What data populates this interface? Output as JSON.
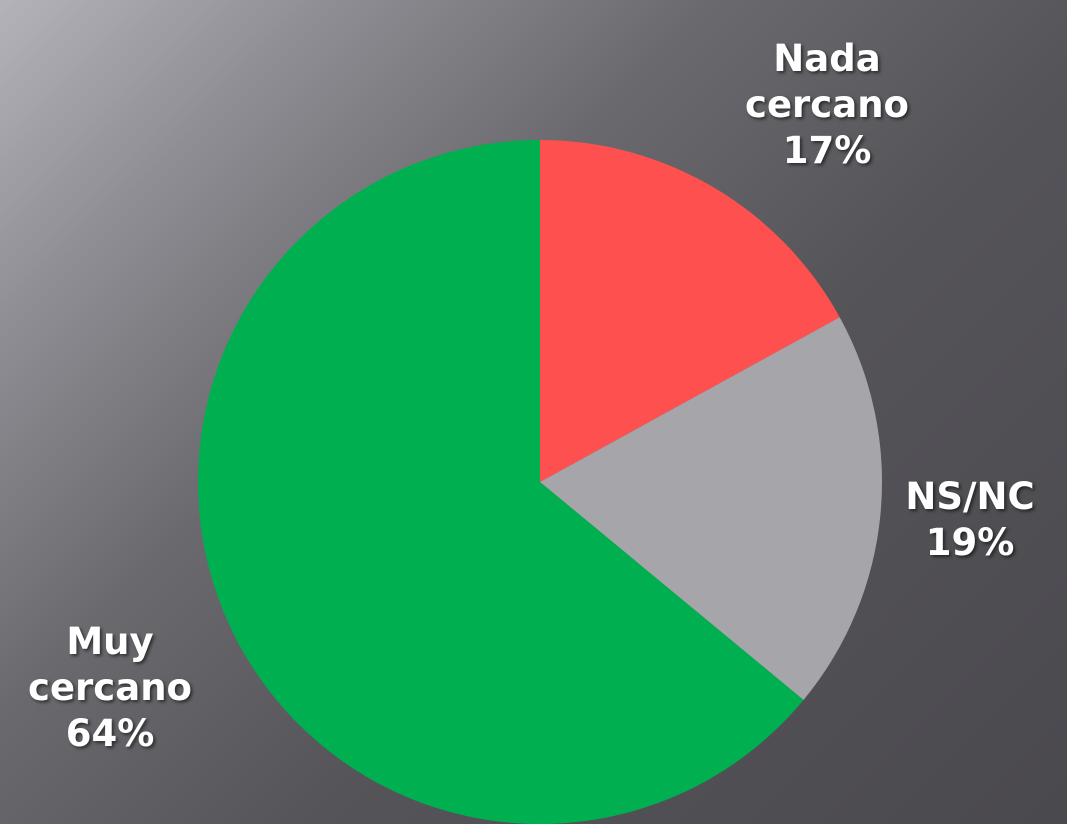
{
  "chart_data": {
    "type": "pie",
    "categories": [
      "Nada cercano",
      "NS/NC",
      "Muy cercano"
    ],
    "values": [
      17,
      19,
      64
    ],
    "value_labels": [
      "17%",
      "19%",
      "64%"
    ],
    "colors": [
      "#ff5050",
      "#a6a5aa",
      "#00b050"
    ]
  }
}
